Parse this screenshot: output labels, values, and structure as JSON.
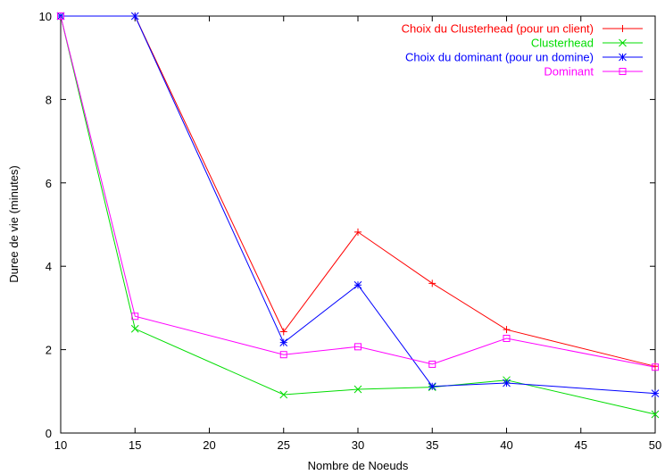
{
  "chart_data": {
    "type": "line",
    "title": "",
    "xlabel": "Nombre de Noeuds",
    "ylabel": "Duree de vie (minutes)",
    "xlim": [
      10,
      50
    ],
    "ylim": [
      0,
      10
    ],
    "xticks": [
      10,
      15,
      20,
      25,
      30,
      35,
      40,
      45,
      50
    ],
    "yticks": [
      0,
      2,
      4,
      6,
      8,
      10
    ],
    "grid": false,
    "legend_position": "top-right",
    "series": [
      {
        "name": "Choix du Clusterhead (pour un client)",
        "color": "#ff0000",
        "marker": "plus",
        "x": [
          10,
          15,
          25,
          30,
          35,
          40,
          50
        ],
        "y": [
          10,
          10,
          2.43,
          4.82,
          3.59,
          2.48,
          1.6
        ]
      },
      {
        "name": "Clusterhead",
        "color": "#00dd00",
        "marker": "cross",
        "x": [
          10,
          15,
          25,
          30,
          35,
          40,
          50
        ],
        "y": [
          10,
          2.5,
          0.92,
          1.05,
          1.1,
          1.27,
          0.45
        ]
      },
      {
        "name": "Choix du dominant (pour un domine)",
        "color": "#0000ff",
        "marker": "star",
        "x": [
          10,
          15,
          25,
          30,
          35,
          40,
          50
        ],
        "y": [
          10,
          10,
          2.17,
          3.55,
          1.12,
          1.2,
          0.95
        ]
      },
      {
        "name": "Dominant",
        "color": "#ff00ff",
        "marker": "square",
        "x": [
          10,
          15,
          25,
          30,
          35,
          40,
          50
        ],
        "y": [
          10,
          2.8,
          1.88,
          2.07,
          1.65,
          2.27,
          1.58
        ]
      }
    ]
  }
}
